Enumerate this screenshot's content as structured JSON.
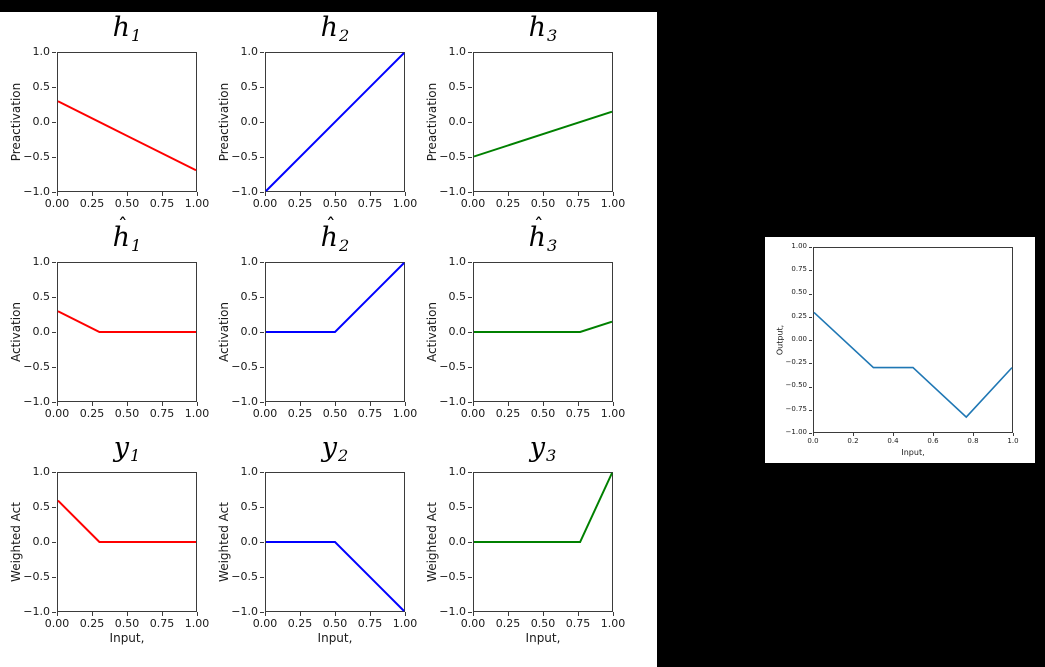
{
  "figure": {
    "background": "#000000",
    "panel_background": "#ffffff",
    "spine_color": "#3b3b3b",
    "text_color": "#1a1a1a",
    "colors": {
      "unit1": "#ff0000",
      "unit2": "#0000ff",
      "unit3": "#008000",
      "output": "#1f77b4"
    }
  },
  "chart_data": [
    {
      "id": "h1-preactivation",
      "type": "line",
      "title": {
        "base": "h",
        "sub": "1",
        "hat": false
      },
      "ylabel": "Preactivation",
      "xlabel": "",
      "color": "#ff0000",
      "points": [
        [
          0,
          0.3
        ],
        [
          1,
          -0.7
        ]
      ],
      "xlim": [
        0,
        1
      ],
      "ylim": [
        -1,
        1
      ],
      "grid": false,
      "xticks": [
        "0.00",
        "0.25",
        "0.50",
        "0.75",
        "1.00"
      ],
      "yticks": [
        "1.0",
        "0.5",
        "0.0",
        "−0.5",
        "−1.0"
      ]
    },
    {
      "id": "h2-preactivation",
      "type": "line",
      "title": {
        "base": "h",
        "sub": "2",
        "hat": false
      },
      "ylabel": "Preactivation",
      "xlabel": "",
      "color": "#0000ff",
      "points": [
        [
          0,
          -1.0
        ],
        [
          1,
          1.0
        ]
      ],
      "xlim": [
        0,
        1
      ],
      "ylim": [
        -1,
        1
      ],
      "grid": false,
      "xticks": [
        "0.00",
        "0.25",
        "0.50",
        "0.75",
        "1.00"
      ],
      "yticks": [
        "1.0",
        "0.5",
        "0.0",
        "−0.5",
        "−1.0"
      ]
    },
    {
      "id": "h3-preactivation",
      "type": "line",
      "title": {
        "base": "h",
        "sub": "3",
        "hat": false
      },
      "ylabel": "Preactivation",
      "xlabel": "",
      "color": "#008000",
      "points": [
        [
          0,
          -0.5
        ],
        [
          1,
          0.15
        ]
      ],
      "xlim": [
        0,
        1
      ],
      "ylim": [
        -1,
        1
      ],
      "grid": false,
      "xticks": [
        "0.00",
        "0.25",
        "0.50",
        "0.75",
        "1.00"
      ],
      "yticks": [
        "1.0",
        "0.5",
        "0.0",
        "−0.5",
        "−1.0"
      ]
    },
    {
      "id": "h1-activation",
      "type": "line",
      "title": {
        "base": "h",
        "sub": "1",
        "hat": true
      },
      "ylabel": "Activation",
      "xlabel": "",
      "color": "#ff0000",
      "points": [
        [
          0,
          0.3
        ],
        [
          0.3,
          0
        ],
        [
          1,
          0
        ]
      ],
      "xlim": [
        0,
        1
      ],
      "ylim": [
        -1,
        1
      ],
      "grid": false,
      "xticks": [
        "0.00",
        "0.25",
        "0.50",
        "0.75",
        "1.00"
      ],
      "yticks": [
        "1.0",
        "0.5",
        "0.0",
        "−0.5",
        "−1.0"
      ]
    },
    {
      "id": "h2-activation",
      "type": "line",
      "title": {
        "base": "h",
        "sub": "2",
        "hat": true
      },
      "ylabel": "Activation",
      "xlabel": "",
      "color": "#0000ff",
      "points": [
        [
          0,
          0
        ],
        [
          0.5,
          0
        ],
        [
          1,
          1.0
        ]
      ],
      "xlim": [
        0,
        1
      ],
      "ylim": [
        -1,
        1
      ],
      "grid": false,
      "xticks": [
        "0.00",
        "0.25",
        "0.50",
        "0.75",
        "1.00"
      ],
      "yticks": [
        "1.0",
        "0.5",
        "0.0",
        "−0.5",
        "−1.0"
      ]
    },
    {
      "id": "h3-activation",
      "type": "line",
      "title": {
        "base": "h",
        "sub": "3",
        "hat": true
      },
      "ylabel": "Activation",
      "xlabel": "",
      "color": "#008000",
      "points": [
        [
          0,
          0
        ],
        [
          0.769,
          0
        ],
        [
          1,
          0.15
        ]
      ],
      "xlim": [
        0,
        1
      ],
      "ylim": [
        -1,
        1
      ],
      "grid": false,
      "xticks": [
        "0.00",
        "0.25",
        "0.50",
        "0.75",
        "1.00"
      ],
      "yticks": [
        "1.0",
        "0.5",
        "0.0",
        "−0.5",
        "−1.0"
      ]
    },
    {
      "id": "y1-weighted",
      "type": "line",
      "title": {
        "base": "y",
        "sub": "1",
        "hat": false
      },
      "ylabel": "Weighted Act",
      "xlabel": "Input,",
      "color": "#ff0000",
      "points": [
        [
          0,
          0.6
        ],
        [
          0.3,
          0
        ],
        [
          1,
          0
        ]
      ],
      "xlim": [
        0,
        1
      ],
      "ylim": [
        -1,
        1
      ],
      "grid": false,
      "xticks": [
        "0.00",
        "0.25",
        "0.50",
        "0.75",
        "1.00"
      ],
      "yticks": [
        "1.0",
        "0.5",
        "0.0",
        "−0.5",
        "−1.0"
      ]
    },
    {
      "id": "y2-weighted",
      "type": "line",
      "title": {
        "base": "y",
        "sub": "2",
        "hat": false
      },
      "ylabel": "Weighted Act",
      "xlabel": "Input,",
      "color": "#0000ff",
      "points": [
        [
          0,
          0
        ],
        [
          0.5,
          0
        ],
        [
          1,
          -1.0
        ]
      ],
      "xlim": [
        0,
        1
      ],
      "ylim": [
        -1,
        1
      ],
      "grid": false,
      "xticks": [
        "0.00",
        "0.25",
        "0.50",
        "0.75",
        "1.00"
      ],
      "yticks": [
        "1.0",
        "0.5",
        "0.0",
        "−0.5",
        "−1.0"
      ]
    },
    {
      "id": "y3-weighted",
      "type": "line",
      "title": {
        "base": "y",
        "sub": "3",
        "hat": false
      },
      "ylabel": "Weighted Act",
      "xlabel": "Input,",
      "color": "#008000",
      "points": [
        [
          0,
          0
        ],
        [
          0.769,
          0
        ],
        [
          1,
          1.0
        ]
      ],
      "xlim": [
        0,
        1
      ],
      "ylim": [
        -1,
        1
      ],
      "grid": false,
      "xticks": [
        "0.00",
        "0.25",
        "0.50",
        "0.75",
        "1.00"
      ],
      "yticks": [
        "1.0",
        "0.5",
        "0.0",
        "−0.5",
        "−1.0"
      ]
    },
    {
      "id": "network-output",
      "type": "line",
      "title": null,
      "ylabel": "Output,",
      "xlabel": "Input,",
      "color": "#1f77b4",
      "points": [
        [
          0,
          0.3
        ],
        [
          0.3,
          -0.3
        ],
        [
          0.5,
          -0.3
        ],
        [
          0.769,
          -0.838
        ],
        [
          1,
          -0.3
        ]
      ],
      "xlim": [
        0,
        1
      ],
      "ylim": [
        -1,
        1
      ],
      "grid": false,
      "xticks": [
        "0.0",
        "0.2",
        "0.4",
        "0.6",
        "0.8",
        "1.0"
      ],
      "yticks": [
        "1.00",
        "0.75",
        "0.50",
        "0.25",
        "0.00",
        "−0.25",
        "−0.50",
        "−0.75",
        "−1.00"
      ]
    }
  ]
}
